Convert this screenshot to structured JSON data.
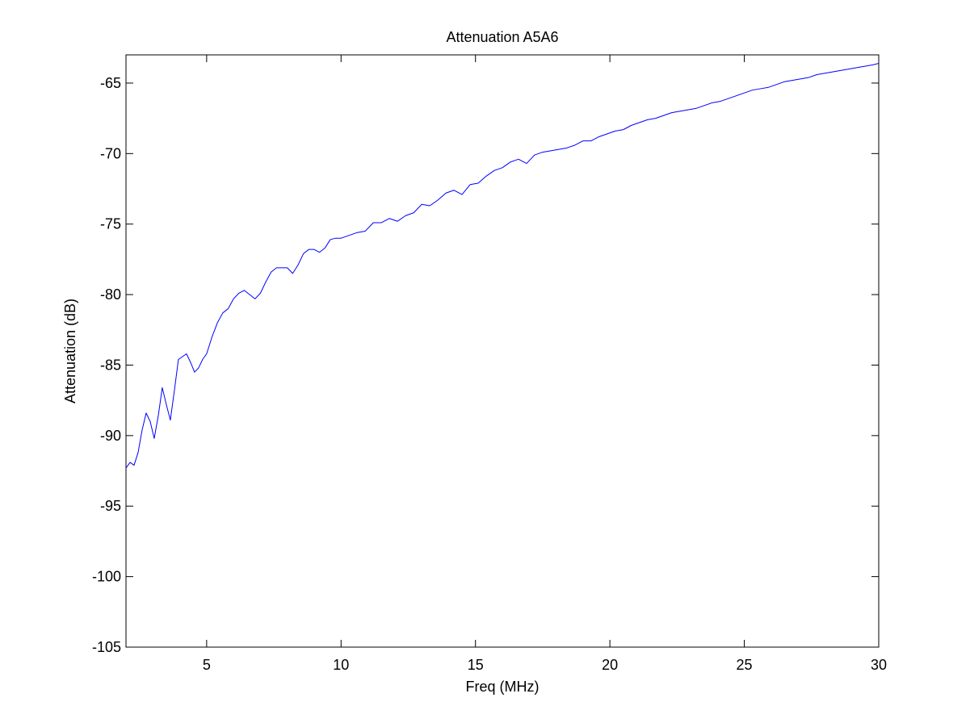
{
  "chart_data": {
    "type": "line",
    "title": "Attenuation A5A6",
    "xlabel": "Freq (MHz)",
    "ylabel": "Attenuation (dB)",
    "xlim": [
      2,
      30
    ],
    "ylim": [
      -105,
      -63
    ],
    "xticks": [
      5,
      10,
      15,
      20,
      25,
      30
    ],
    "xtick_labels": [
      "5",
      "10",
      "15",
      "20",
      "25",
      "30"
    ],
    "yticks": [
      -105,
      -100,
      -95,
      -90,
      -85,
      -80,
      -75,
      -70,
      -65
    ],
    "ytick_labels": [
      "-105",
      "-100",
      "-95",
      "-90",
      "-85",
      "-80",
      "-75",
      "-70",
      "-65"
    ],
    "grid": false,
    "line_color": "#0000ff",
    "axes_color": "#000000",
    "series": [
      {
        "x": [
          2.0,
          2.15,
          2.3,
          2.45,
          2.6,
          2.75,
          2.9,
          3.05,
          3.2,
          3.35,
          3.5,
          3.65,
          3.8,
          3.95,
          4.1,
          4.25,
          4.4,
          4.55,
          4.7,
          4.85,
          5.0,
          5.2,
          5.4,
          5.6,
          5.8,
          6.0,
          6.2,
          6.4,
          6.6,
          6.8,
          7.0,
          7.2,
          7.4,
          7.6,
          7.8,
          8.0,
          8.2,
          8.4,
          8.6,
          8.8,
          9.0,
          9.2,
          9.4,
          9.6,
          9.8,
          10.0,
          10.3,
          10.6,
          10.9,
          11.2,
          11.5,
          11.8,
          12.1,
          12.4,
          12.7,
          13.0,
          13.3,
          13.6,
          13.9,
          14.2,
          14.5,
          14.8,
          15.1,
          15.4,
          15.7,
          16.0,
          16.3,
          16.6,
          16.9,
          17.2,
          17.5,
          17.8,
          18.1,
          18.4,
          18.7,
          19.0,
          19.3,
          19.6,
          19.9,
          20.2,
          20.5,
          20.8,
          21.1,
          21.4,
          21.7,
          22.0,
          22.3,
          22.6,
          22.9,
          23.2,
          23.5,
          23.8,
          24.1,
          24.4,
          24.7,
          25.0,
          25.3,
          25.6,
          25.9,
          26.2,
          26.5,
          26.8,
          27.1,
          27.4,
          27.7,
          28.0,
          28.3,
          28.6,
          28.9,
          29.2,
          29.5,
          29.8,
          30.0
        ],
        "y": [
          -92.3,
          -91.9,
          -92.1,
          -91.2,
          -89.6,
          -88.4,
          -89.0,
          -90.2,
          -88.6,
          -86.6,
          -87.8,
          -88.9,
          -86.8,
          -84.6,
          -84.4,
          -84.2,
          -84.8,
          -85.5,
          -85.2,
          -84.6,
          -84.2,
          -83.0,
          -82.0,
          -81.3,
          -81.0,
          -80.3,
          -79.9,
          -79.7,
          -80.0,
          -80.3,
          -79.9,
          -79.1,
          -78.4,
          -78.1,
          -78.1,
          -78.1,
          -78.5,
          -77.9,
          -77.1,
          -76.8,
          -76.8,
          -77.0,
          -76.7,
          -76.1,
          -76.0,
          -76.0,
          -75.8,
          -75.6,
          -75.5,
          -74.9,
          -74.9,
          -74.6,
          -74.8,
          -74.4,
          -74.2,
          -73.6,
          -73.7,
          -73.3,
          -72.8,
          -72.6,
          -72.9,
          -72.2,
          -72.1,
          -71.6,
          -71.2,
          -71.0,
          -70.6,
          -70.4,
          -70.7,
          -70.1,
          -69.9,
          -69.8,
          -69.7,
          -69.6,
          -69.4,
          -69.1,
          -69.1,
          -68.8,
          -68.6,
          -68.4,
          -68.3,
          -68.0,
          -67.8,
          -67.6,
          -67.5,
          -67.3,
          -67.1,
          -67.0,
          -66.9,
          -66.8,
          -66.6,
          -66.4,
          -66.3,
          -66.1,
          -65.9,
          -65.7,
          -65.5,
          -65.4,
          -65.3,
          -65.1,
          -64.9,
          -64.8,
          -64.7,
          -64.6,
          -64.4,
          -64.3,
          -64.2,
          -64.1,
          -64.0,
          -63.9,
          -63.8,
          -63.7,
          -63.6
        ]
      }
    ]
  }
}
